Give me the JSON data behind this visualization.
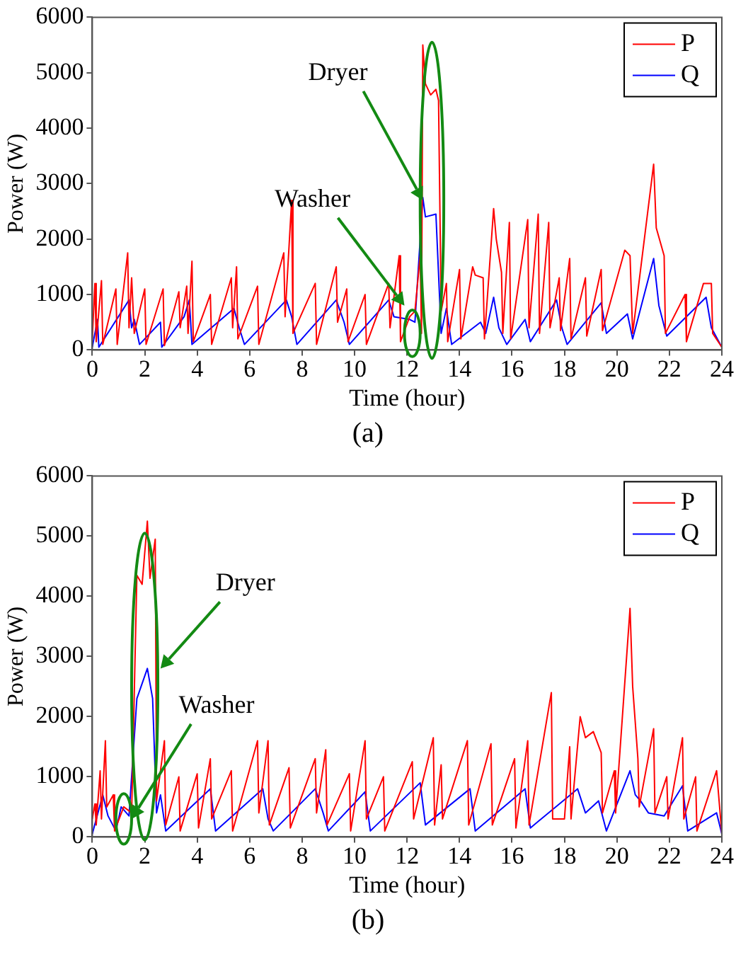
{
  "chart_data": [
    {
      "type": "line",
      "xlabel": "Time (hour)",
      "ylabel": "Power (W)",
      "xlim": [
        0,
        24
      ],
      "xticks": [
        0,
        2,
        4,
        6,
        8,
        10,
        12,
        14,
        16,
        18,
        20,
        22,
        24
      ],
      "ylim": [
        0,
        6000
      ],
      "yticks": [
        0,
        1000,
        2000,
        3000,
        4000,
        5000,
        6000
      ],
      "grid": false,
      "legend": "top right",
      "marker": "none",
      "line_style": "solid",
      "annotations": [
        {
          "text": "Dryer",
          "x": 12.6,
          "y": 2700
        },
        {
          "text": "Washer",
          "x": 11.9,
          "y": 800
        },
        "(a)"
      ],
      "series": [
        {
          "name": "P",
          "color": "#ff0000",
          "x": [
            0,
            0.1,
            0.15,
            0.35,
            0.4,
            0.9,
            0.95,
            1.35,
            1.4,
            1.5,
            1.6,
            2.0,
            2.05,
            2.7,
            2.75,
            3.3,
            3.35,
            3.6,
            3.65,
            3.8,
            3.85,
            4.5,
            4.55,
            5.3,
            5.35,
            5.5,
            5.55,
            6.3,
            6.35,
            7.3,
            7.35,
            7.6,
            7.65,
            8.5,
            8.55,
            9.3,
            9.35,
            9.7,
            9.75,
            10.4,
            10.45,
            11.3,
            11.35,
            11.7,
            11.75,
            12.1,
            12.3,
            12.5,
            12.55,
            12.6,
            12.7,
            12.9,
            13.1,
            13.2,
            13.3,
            13.5,
            13.55,
            14.0,
            14.05,
            14.5,
            14.6,
            14.9,
            14.95,
            15.3,
            15.4,
            15.6,
            15.65,
            15.9,
            15.95,
            16.6,
            16.65,
            17.0,
            17.05,
            17.4,
            17.45,
            17.8,
            17.85,
            18.2,
            18.25,
            18.8,
            18.85,
            19.4,
            19.45,
            20.3,
            20.5,
            20.6,
            21.4,
            21.5,
            21.8,
            21.85,
            22.6,
            22.65,
            23.3,
            23.6,
            23.65,
            24
          ],
          "values": [
            200,
            1200,
            150,
            1250,
            100,
            1100,
            100,
            1750,
            400,
            1300,
            300,
            1100,
            100,
            1100,
            80,
            1050,
            400,
            1150,
            300,
            1600,
            150,
            1000,
            100,
            1300,
            400,
            1500,
            200,
            1150,
            100,
            1750,
            600,
            2700,
            300,
            1200,
            100,
            1500,
            500,
            1100,
            150,
            1000,
            100,
            1200,
            400,
            1700,
            150,
            600,
            700,
            1700,
            300,
            5500,
            4800,
            4600,
            4700,
            4500,
            700,
            1200,
            150,
            1450,
            200,
            1500,
            1350,
            1300,
            200,
            2550,
            2000,
            1400,
            300,
            2300,
            200,
            2350,
            400,
            2450,
            300,
            2300,
            400,
            1300,
            350,
            1650,
            200,
            1300,
            250,
            1450,
            350,
            1800,
            1700,
            300,
            3350,
            2200,
            1700,
            300,
            1000,
            150,
            1200,
            1200,
            300,
            50
          ]
        },
        {
          "name": "Q",
          "color": "#0000ff",
          "x": [
            0,
            0.2,
            0.25,
            1.4,
            1.5,
            1.6,
            1.8,
            2.6,
            2.65,
            3.5,
            3.7,
            3.8,
            5.4,
            5.6,
            5.8,
            7.4,
            7.6,
            7.8,
            9.3,
            9.6,
            9.8,
            11.3,
            11.5,
            12.1,
            12.3,
            12.6,
            12.7,
            13.1,
            13.3,
            13.5,
            13.7,
            14.8,
            15.0,
            15.3,
            15.5,
            15.8,
            16.5,
            16.7,
            17.7,
            17.9,
            18.1,
            19.4,
            19.6,
            20.4,
            20.6,
            21.4,
            21.6,
            21.9,
            23.4,
            23.6,
            24
          ],
          "values": [
            50,
            550,
            50,
            900,
            400,
            550,
            100,
            500,
            50,
            600,
            900,
            100,
            750,
            400,
            100,
            900,
            600,
            100,
            900,
            500,
            100,
            900,
            600,
            550,
            500,
            2750,
            2400,
            2450,
            300,
            750,
            100,
            500,
            300,
            950,
            400,
            100,
            550,
            150,
            900,
            400,
            100,
            850,
            300,
            650,
            200,
            1650,
            800,
            250,
            950,
            400,
            50
          ]
        }
      ]
    },
    {
      "type": "line",
      "xlabel": "Time (hour)",
      "ylabel": "Power (W)",
      "xlim": [
        0,
        24
      ],
      "xticks": [
        0,
        2,
        4,
        6,
        8,
        10,
        12,
        14,
        16,
        18,
        20,
        22,
        24
      ],
      "ylim": [
        0,
        6000
      ],
      "yticks": [
        0,
        1000,
        2000,
        3000,
        4000,
        5000,
        6000
      ],
      "grid": false,
      "legend": "top right",
      "marker": "none",
      "line_style": "solid",
      "annotations": [
        {
          "text": "Dryer",
          "x": 2.6,
          "y": 2800
        },
        {
          "text": "Washer",
          "x": 1.5,
          "y": 300
        },
        "(b)"
      ],
      "series": [
        {
          "name": "P",
          "color": "#ff0000",
          "x": [
            0,
            0.1,
            0.15,
            0.3,
            0.35,
            0.5,
            0.55,
            0.8,
            0.85,
            1.2,
            1.5,
            1.7,
            1.9,
            2.1,
            2.2,
            2.4,
            2.45,
            2.75,
            2.8,
            3.3,
            3.35,
            4.0,
            4.05,
            4.5,
            4.55,
            5.3,
            5.35,
            6.3,
            6.35,
            6.7,
            6.75,
            7.5,
            7.55,
            8.5,
            8.55,
            8.9,
            8.95,
            9.8,
            9.85,
            10.4,
            10.45,
            11.1,
            11.15,
            12.2,
            12.25,
            13.0,
            13.05,
            13.3,
            13.35,
            14.3,
            14.35,
            15.2,
            15.25,
            16.1,
            16.15,
            16.6,
            16.65,
            17.5,
            17.55,
            18.0,
            18.2,
            18.25,
            18.6,
            18.8,
            19.1,
            19.4,
            19.45,
            19.9,
            19.95,
            20.5,
            20.6,
            20.8,
            20.85,
            21.4,
            21.45,
            21.9,
            21.95,
            22.5,
            22.55,
            23.0,
            23.05,
            23.8,
            24
          ],
          "values": [
            300,
            550,
            200,
            1100,
            300,
            1600,
            500,
            700,
            100,
            500,
            400,
            4350,
            4200,
            5250,
            4300,
            4950,
            600,
            1600,
            200,
            1000,
            100,
            1050,
            150,
            1300,
            300,
            1100,
            100,
            1600,
            400,
            1600,
            200,
            1150,
            150,
            1300,
            400,
            1450,
            200,
            1050,
            100,
            1600,
            300,
            1000,
            100,
            1250,
            300,
            1650,
            200,
            1200,
            300,
            1600,
            200,
            1550,
            200,
            1300,
            150,
            1600,
            200,
            2400,
            300,
            300,
            1500,
            300,
            2000,
            1650,
            1750,
            1400,
            400,
            1100,
            400,
            3800,
            2500,
            1300,
            500,
            1800,
            400,
            1000,
            300,
            1650,
            300,
            1000,
            100,
            1100,
            50
          ]
        },
        {
          "name": "Q",
          "color": "#0000ff",
          "x": [
            0,
            0.4,
            0.6,
            0.9,
            1.1,
            1.4,
            1.7,
            2.1,
            2.3,
            2.45,
            2.6,
            2.8,
            4.5,
            4.7,
            6.5,
            6.7,
            6.9,
            8.5,
            8.8,
            9.0,
            10.4,
            10.6,
            12.5,
            12.7,
            14.4,
            14.6,
            16.5,
            16.7,
            18.5,
            18.8,
            19.3,
            19.6,
            20.5,
            20.7,
            20.9,
            21.2,
            21.8,
            22.5,
            22.7,
            23.8,
            24
          ],
          "values": [
            50,
            700,
            350,
            100,
            500,
            350,
            2300,
            2800,
            2300,
            400,
            700,
            100,
            800,
            100,
            800,
            300,
            100,
            800,
            400,
            100,
            750,
            100,
            900,
            200,
            800,
            100,
            800,
            150,
            800,
            400,
            600,
            100,
            1100,
            700,
            600,
            400,
            350,
            850,
            100,
            400,
            50
          ]
        }
      ]
    }
  ]
}
